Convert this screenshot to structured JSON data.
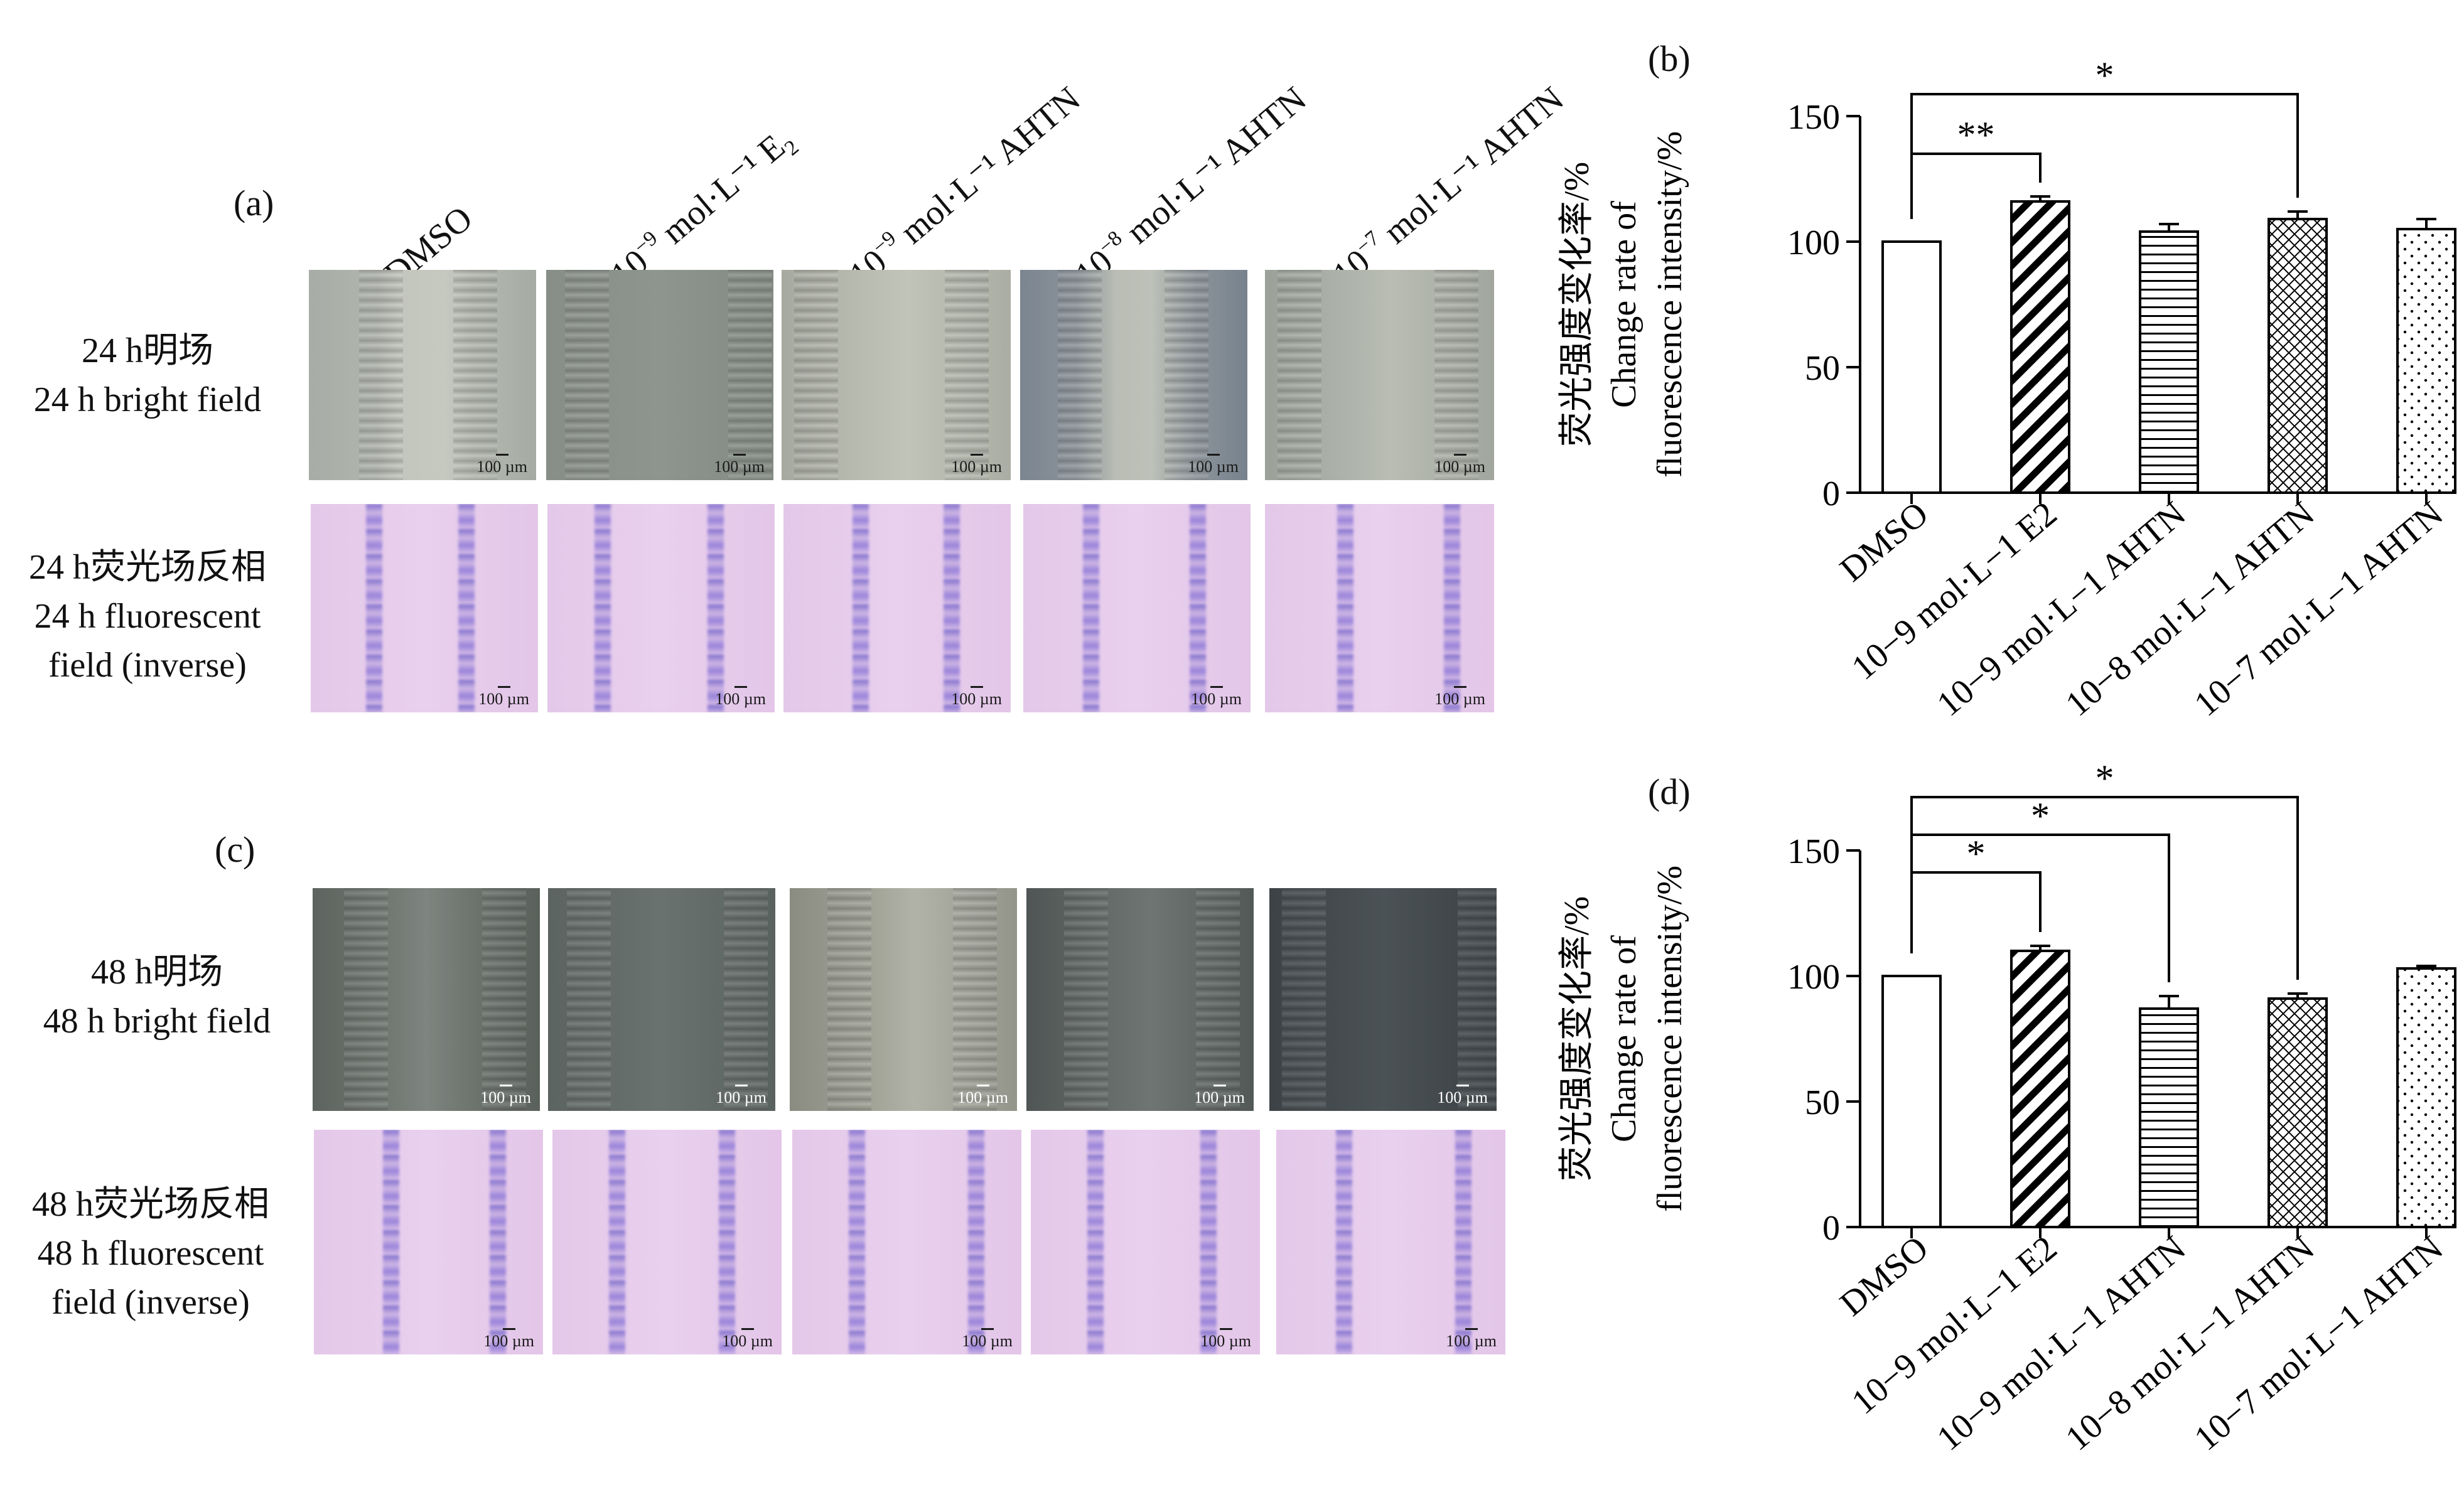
{
  "figure": {
    "panel_a_label": "(a)",
    "panel_b_label": "(b)",
    "panel_c_label": "(c)",
    "panel_d_label": "(d)",
    "columns": [
      {
        "base": "DMSO",
        "exp": "",
        "rest": "",
        "sub": ""
      },
      {
        "base": "10",
        "exp": "−9",
        "rest": " mol·L⁻¹ E",
        "sub": "2"
      },
      {
        "base": "10",
        "exp": "−9",
        "rest": " mol·L⁻¹ AHTN",
        "sub": ""
      },
      {
        "base": "10",
        "exp": "−8",
        "rest": " mol·L⁻¹ AHTN",
        "sub": ""
      },
      {
        "base": "10",
        "exp": "−7",
        "rest": " mol·L⁻¹ AHTN",
        "sub": ""
      }
    ],
    "rows_24h": {
      "bright_cn": "24 h明场",
      "bright_en": "24 h bright field",
      "fluor_cn": "24 h荧光场反相",
      "fluor_en1": "24 h fluorescent",
      "fluor_en2": "field (inverse)"
    },
    "rows_48h": {
      "bright_cn": "48 h明场",
      "bright_en": "48 h bright field",
      "fluor_cn": "48 h荧光场反相",
      "fluor_en1": "48 h fluorescent",
      "fluor_en2": "field (inverse)"
    },
    "scale_bar_label": "100 µm"
  },
  "chart_data": [
    {
      "type": "bar",
      "panel": "(b)",
      "ylabel_cn": "荧光强度变化率/%",
      "ylabel_en1": "Change rate of",
      "ylabel_en2": "fluorescence intensity/%",
      "ylim": [
        0,
        150
      ],
      "yticks": [
        "0",
        "50",
        "100",
        "150"
      ],
      "categories": [
        "DMSO",
        "10−9 mol·L−1 E2",
        "10−9 mol·L−1 AHTN",
        "10−8 mol·L−1 AHTN",
        "10−7 mol·L−1 AHTN"
      ],
      "values": [
        100,
        116,
        104,
        109,
        105
      ],
      "errors": [
        0,
        2,
        3,
        3,
        4
      ],
      "patterns": [
        "none",
        "diagonal",
        "horizontal",
        "crosshatch",
        "dots"
      ],
      "significance": [
        {
          "from": 0,
          "to": 1,
          "label": "**"
        },
        {
          "from": 0,
          "to": 3,
          "label": "*"
        }
      ]
    },
    {
      "type": "bar",
      "panel": "(d)",
      "ylabel_cn": "荧光强度变化率/%",
      "ylabel_en1": "Change rate of",
      "ylabel_en2": "fluorescence intensity/%",
      "ylim": [
        0,
        150
      ],
      "yticks": [
        "0",
        "50",
        "100",
        "150"
      ],
      "categories": [
        "DMSO",
        "10−9 mol·L−1 E2",
        "10−9 mol·L−1 AHTN",
        "10−8 mol·L−1 AHTN",
        "10−7 mol·L−1 AHTN"
      ],
      "values": [
        100,
        110,
        87,
        91,
        103
      ],
      "errors": [
        0,
        2,
        5,
        2,
        1
      ],
      "patterns": [
        "none",
        "diagonal",
        "horizontal",
        "crosshatch",
        "dots"
      ],
      "significance": [
        {
          "from": 0,
          "to": 1,
          "label": "*"
        },
        {
          "from": 0,
          "to": 2,
          "label": "*"
        },
        {
          "from": 0,
          "to": 3,
          "label": "*"
        }
      ]
    }
  ]
}
